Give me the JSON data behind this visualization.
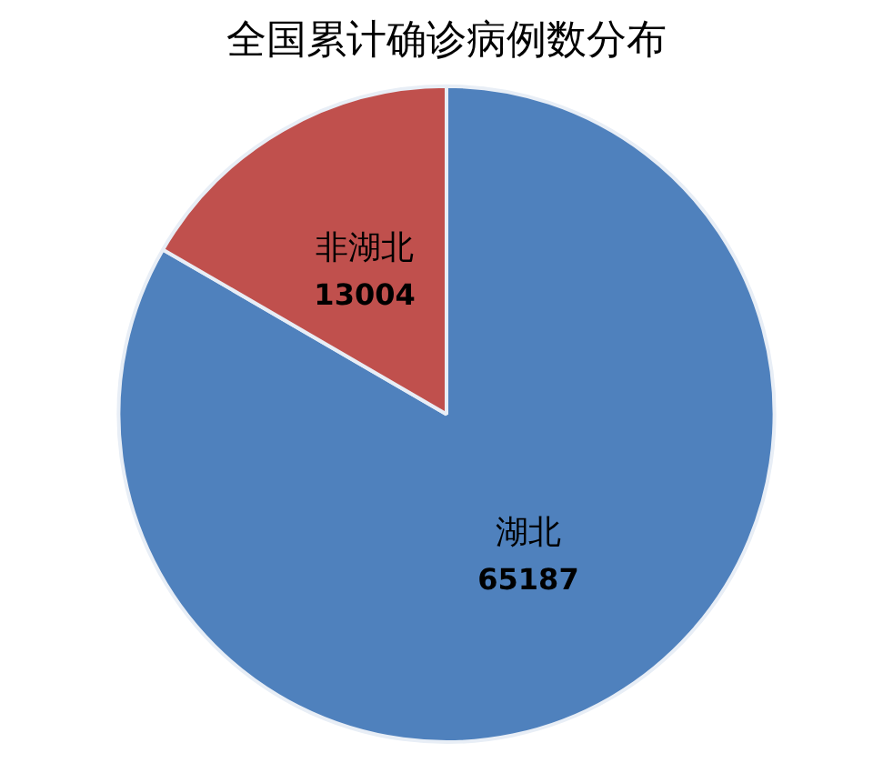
{
  "chart_data": {
    "type": "pie",
    "title": "全国累计确诊病例数分布",
    "categories": [
      "湖北",
      "非湖北"
    ],
    "values": [
      65187,
      13004
    ],
    "colors": [
      "#4f81bd",
      "#c0504d"
    ],
    "data_labels": true,
    "legend": false
  }
}
